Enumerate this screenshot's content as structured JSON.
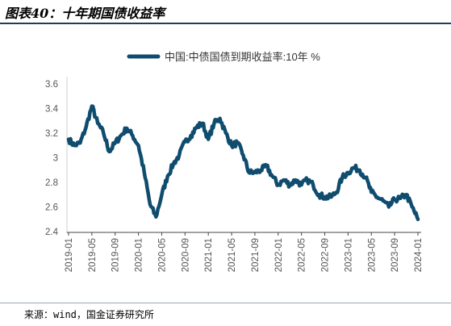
{
  "figure_title": "图表40：十年期国债收益率",
  "source": "来源：wind，国金证券研究所",
  "chart_data": {
    "type": "line",
    "title": "",
    "xlabel": "",
    "ylabel": "",
    "ylim": [
      2.4,
      3.6
    ],
    "yticks": [
      "2.4",
      "2.6",
      "2.8",
      "3",
      "3.2",
      "3.4",
      "3.6"
    ],
    "xticks": [
      "2019-01",
      "2019-05",
      "2019-09",
      "2020-01",
      "2020-05",
      "2020-09",
      "2021-01",
      "2021-05",
      "2021-09",
      "2022-01",
      "2022-05",
      "2022-09",
      "2023-01",
      "2023-05",
      "2023-09",
      "2024-01"
    ],
    "legend_position": "top-center",
    "grid": false,
    "series_color": "#0f4c6e",
    "series": [
      {
        "name": "中国:中债国债到期收益率:10年 %",
        "x": [
          "2019-01",
          "2019-02",
          "2019-03",
          "2019-04",
          "2019-05",
          "2019-06",
          "2019-07",
          "2019-08",
          "2019-09",
          "2019-10",
          "2019-11",
          "2019-12",
          "2020-01",
          "2020-02",
          "2020-03",
          "2020-04",
          "2020-05",
          "2020-06",
          "2020-07",
          "2020-08",
          "2020-09",
          "2020-10",
          "2020-11",
          "2020-12",
          "2021-01",
          "2021-02",
          "2021-03",
          "2021-04",
          "2021-05",
          "2021-06",
          "2021-07",
          "2021-08",
          "2021-09",
          "2021-10",
          "2021-11",
          "2021-12",
          "2022-01",
          "2022-02",
          "2022-03",
          "2022-04",
          "2022-05",
          "2022-06",
          "2022-07",
          "2022-08",
          "2022-09",
          "2022-10",
          "2022-11",
          "2022-12",
          "2023-01",
          "2023-02",
          "2023-03",
          "2023-04",
          "2023-05",
          "2023-06",
          "2023-07",
          "2023-08",
          "2023-09",
          "2023-10",
          "2023-11",
          "2023-12",
          "2024-01"
        ],
        "values": [
          3.15,
          3.1,
          3.12,
          3.25,
          3.42,
          3.28,
          3.2,
          3.05,
          3.12,
          3.18,
          3.24,
          3.18,
          3.1,
          2.88,
          2.62,
          2.52,
          2.7,
          2.85,
          2.95,
          3.02,
          3.13,
          3.18,
          3.25,
          3.28,
          3.15,
          3.28,
          3.32,
          3.2,
          3.1,
          3.12,
          3.02,
          2.88,
          2.88,
          2.9,
          2.93,
          2.85,
          2.78,
          2.82,
          2.78,
          2.82,
          2.78,
          2.82,
          2.78,
          2.7,
          2.68,
          2.68,
          2.72,
          2.84,
          2.88,
          2.92,
          2.9,
          2.84,
          2.72,
          2.68,
          2.65,
          2.6,
          2.66,
          2.67,
          2.7,
          2.6,
          2.5
        ]
      }
    ]
  }
}
